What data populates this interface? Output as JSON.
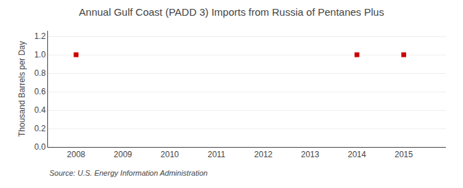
{
  "chart_data": {
    "type": "scatter",
    "title": "Annual Gulf Coast (PADD 3) Imports from Russia of Pentanes Plus",
    "ylabel": "Thousand Barrels per Day",
    "annotations": [
      "Source: U.S. Energy Information Administration"
    ],
    "x": [
      2008,
      2014,
      2015
    ],
    "values": [
      1.0,
      1.0,
      1.0
    ],
    "color": "#CC0000",
    "marker": "square",
    "xlim": [
      2007.4,
      2015.9
    ],
    "xticks": [
      2008,
      2009,
      2010,
      2011,
      2012,
      2013,
      2014,
      2015
    ],
    "ylim": [
      0.0,
      1.26
    ],
    "yticks": [
      {
        "value": 0.0,
        "label": "0.0"
      },
      0.2,
      0.4,
      0.6,
      0.8,
      {
        "value": 1.0,
        "label": "1.0"
      },
      1.2
    ],
    "grid": "y"
  }
}
